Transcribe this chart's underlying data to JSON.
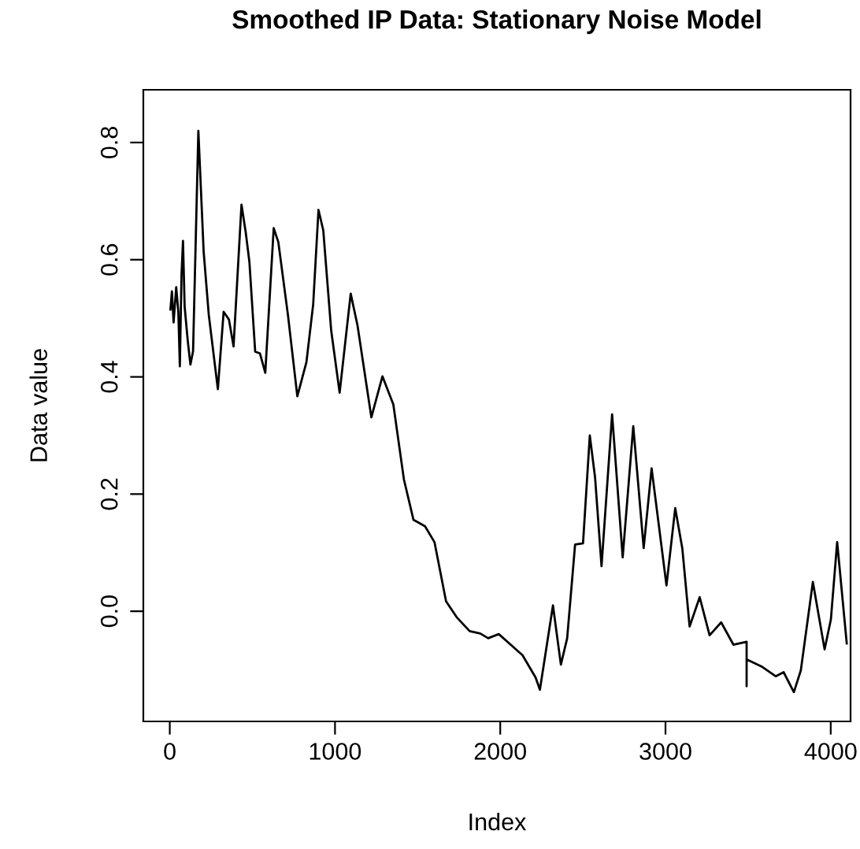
{
  "chart_data": {
    "type": "line",
    "title": "Smoothed IP Data: Stationary Noise Model",
    "xlabel": "Index",
    "ylabel": "Data value",
    "x": [
      4,
      13,
      23,
      39,
      52,
      61,
      71,
      80,
      90,
      109,
      125,
      141,
      173,
      205,
      236,
      291,
      326,
      358,
      386,
      434,
      460,
      482,
      517,
      546,
      578,
      629,
      657,
      715,
      772,
      827,
      868,
      900,
      929,
      977,
      1028,
      1095,
      1136,
      1220,
      1287,
      1353,
      1417,
      1475,
      1545,
      1602,
      1672,
      1736,
      1815,
      1879,
      1927,
      1991,
      2071,
      2135,
      2214,
      2240,
      2319,
      2367,
      2405,
      2453,
      2501,
      2542,
      2574,
      2613,
      2677,
      2741,
      2805,
      2868,
      2916,
      3006,
      3059,
      3102,
      3146,
      3207,
      3267,
      3337,
      3411,
      3491,
      3491,
      3491,
      3586,
      3667,
      3715,
      3777,
      3819,
      3892,
      3963,
      4001,
      4039,
      4097
    ],
    "series": [
      {
        "color": "#000000",
        "values": [
          0.515,
          0.546,
          0.493,
          0.553,
          0.51,
          0.418,
          0.573,
          0.632,
          0.52,
          0.461,
          0.421,
          0.444,
          0.82,
          0.614,
          0.506,
          0.379,
          0.511,
          0.498,
          0.452,
          0.694,
          0.646,
          0.596,
          0.443,
          0.44,
          0.407,
          0.654,
          0.63,
          0.506,
          0.367,
          0.425,
          0.524,
          0.685,
          0.65,
          0.479,
          0.373,
          0.542,
          0.488,
          0.331,
          0.401,
          0.353,
          0.225,
          0.156,
          0.145,
          0.118,
          0.017,
          -0.01,
          -0.034,
          -0.038,
          -0.046,
          -0.039,
          -0.059,
          -0.075,
          -0.113,
          -0.134,
          0.01,
          -0.091,
          -0.046,
          0.114,
          0.116,
          0.3,
          0.228,
          0.077,
          0.336,
          0.092,
          0.316,
          0.108,
          0.244,
          0.044,
          0.176,
          0.107,
          -0.026,
          0.024,
          -0.041,
          -0.019,
          -0.057,
          -0.052,
          -0.128,
          -0.082,
          -0.095,
          -0.111,
          -0.104,
          -0.138,
          -0.101,
          0.05,
          -0.065,
          -0.014,
          0.118,
          -0.055
        ]
      }
    ],
    "xlim": [
      -160,
      4120
    ],
    "ylim": [
      -0.188,
      0.89
    ],
    "xticks": [
      0,
      1000,
      2000,
      3000,
      4000
    ],
    "yticks": [
      {
        "value": 0,
        "label": "0.0"
      },
      {
        "value": 0.2,
        "label": "0.2"
      },
      {
        "value": 0.4,
        "label": "0.4"
      },
      {
        "value": 0.6,
        "label": "0.6"
      },
      {
        "value": 0.8,
        "label": "0.8"
      }
    ],
    "grid": false,
    "legend": false,
    "line_style": "solid",
    "marker": "none"
  }
}
